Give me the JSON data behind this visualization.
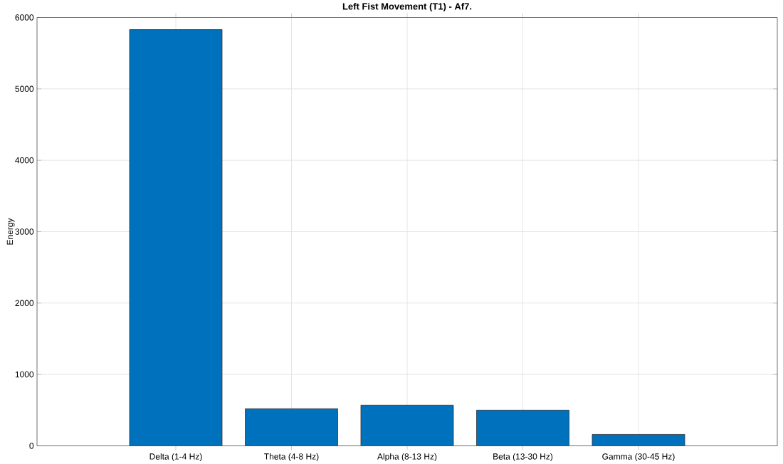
{
  "chart_data": {
    "type": "bar",
    "title": "Left Fist Movement (T1) - Af7.",
    "ylabel": "Energy",
    "categories": [
      "Delta (1-4 Hz)",
      "Theta (4-8 Hz)",
      "Alpha (8-13 Hz)",
      "Beta (13-30 Hz)",
      "Gamma (30-45 Hz)"
    ],
    "values": [
      5830,
      520,
      570,
      500,
      160
    ],
    "color": "#0072bd",
    "ylim": [
      0,
      6000
    ],
    "yticks": [
      0,
      1000,
      2000,
      3000,
      4000,
      5000,
      6000
    ],
    "grid": true
  }
}
